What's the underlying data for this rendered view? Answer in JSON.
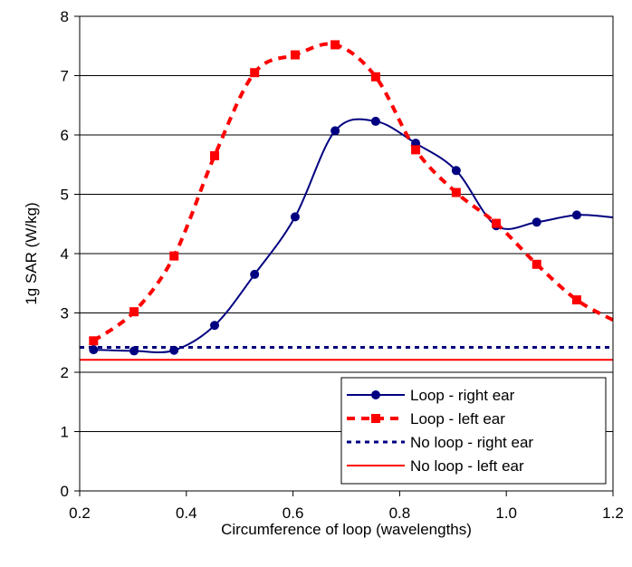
{
  "chart_data": {
    "type": "line",
    "title": "",
    "xlabel": "Circumference of loop (wavelengths)",
    "ylabel": "1g SAR (W/kg)",
    "xlim": [
      0.2,
      1.2
    ],
    "ylim": [
      0,
      8
    ],
    "xticks": [
      0.2,
      0.4,
      0.6,
      0.8,
      1.0,
      1.2
    ],
    "xtick_labels": [
      "0.2",
      "0.4",
      "0.6",
      "0.8",
      "1.0",
      "1.2"
    ],
    "yticks": [
      0,
      1,
      2,
      3,
      4,
      5,
      6,
      7,
      8
    ],
    "ytick_labels": [
      "0",
      "1",
      "2",
      "3",
      "4",
      "5",
      "6",
      "7",
      "8"
    ],
    "grid": "horizontal",
    "legend_position": "bottom-right",
    "series": [
      {
        "name": "Loop - right ear",
        "color": "#000080",
        "style": "solid",
        "marker": "circle",
        "points": [
          [
            0.226,
            2.38
          ],
          [
            0.302,
            2.36
          ],
          [
            0.377,
            2.37
          ],
          [
            0.453,
            2.79
          ],
          [
            0.528,
            3.65
          ],
          [
            0.604,
            4.62
          ],
          [
            0.679,
            6.07
          ],
          [
            0.755,
            6.23
          ],
          [
            0.83,
            5.86
          ],
          [
            0.906,
            5.4
          ],
          [
            0.981,
            4.47
          ],
          [
            1.057,
            4.53
          ],
          [
            1.132,
            4.65
          ]
        ],
        "curve_end": [
          1.2,
          4.61
        ]
      },
      {
        "name": "Loop - left ear",
        "color": "#ff0000",
        "style": "dashed",
        "marker": "square",
        "points": [
          [
            0.226,
            2.53
          ],
          [
            0.302,
            3.02
          ],
          [
            0.377,
            3.96
          ],
          [
            0.453,
            5.65
          ],
          [
            0.528,
            7.05
          ],
          [
            0.604,
            7.35
          ],
          [
            0.679,
            7.52
          ],
          [
            0.755,
            6.98
          ],
          [
            0.83,
            5.75
          ],
          [
            0.906,
            5.03
          ],
          [
            0.981,
            4.51
          ],
          [
            1.057,
            3.82
          ],
          [
            1.132,
            3.22
          ]
        ],
        "curve_end": [
          1.2,
          2.88
        ]
      },
      {
        "name": "No loop - right ear",
        "color": "#000080",
        "style": "dotted",
        "marker": "none",
        "points": [
          [
            0.2,
            2.42
          ],
          [
            1.2,
            2.42
          ]
        ]
      },
      {
        "name": "No loop - left ear",
        "color": "#ff0000",
        "style": "solid",
        "marker": "none",
        "points": [
          [
            0.2,
            2.21
          ],
          [
            1.2,
            2.21
          ]
        ]
      }
    ]
  }
}
